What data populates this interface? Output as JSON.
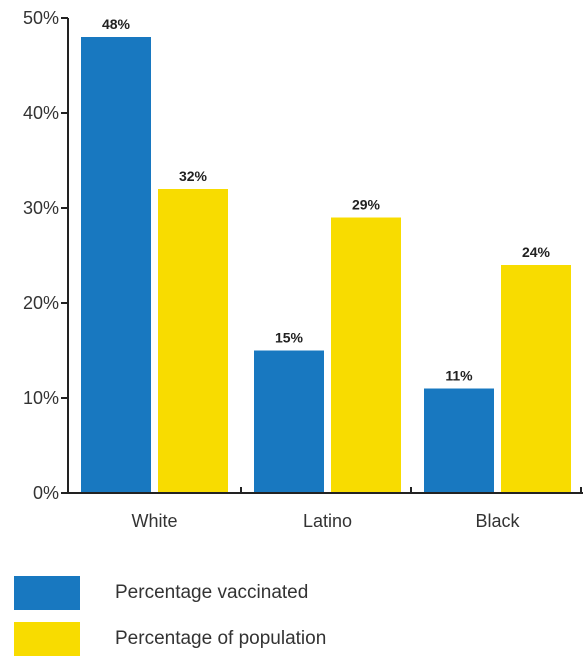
{
  "chart_data": {
    "type": "bar",
    "categories": [
      "White",
      "Latino",
      "Black"
    ],
    "series": [
      {
        "name": "Percentage vaccinated",
        "values": [
          48,
          15,
          11
        ],
        "labels": [
          "48%",
          "15%",
          "11%"
        ],
        "color": "#1878c0"
      },
      {
        "name": "Percentage of population",
        "values": [
          32,
          29,
          24
        ],
        "labels": [
          "32%",
          "29%",
          "24%"
        ],
        "color": "#f8dc00"
      }
    ],
    "yticks": [
      "0%",
      "10%",
      "20%",
      "30%",
      "40%",
      "50%"
    ],
    "ylim": [
      0,
      50
    ],
    "grid": false,
    "legend_position": "bottom-left"
  }
}
